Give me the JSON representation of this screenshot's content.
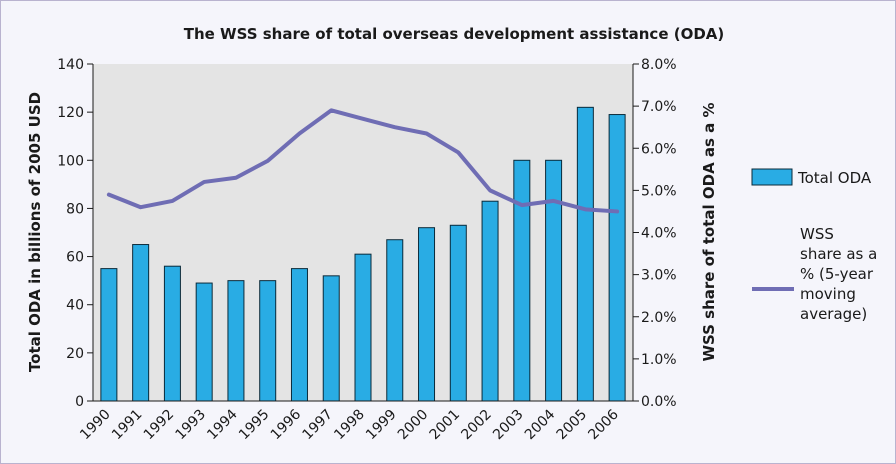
{
  "chart_data": {
    "type": "bar",
    "title": "The WSS share of total overseas development assistance (ODA)",
    "categories": [
      "1990",
      "1991",
      "1992",
      "1993",
      "1994",
      "1995",
      "1996",
      "1997",
      "1998",
      "1999",
      "2000",
      "2001",
      "2002",
      "2003",
      "2004",
      "2005",
      "2006"
    ],
    "series": [
      {
        "name": "Total ODA",
        "type": "bar",
        "axis": "left",
        "values": [
          55,
          65,
          56,
          49,
          50,
          50,
          55,
          52,
          61,
          67,
          72,
          73,
          83,
          100,
          100,
          122,
          119
        ]
      },
      {
        "name": "WSS share as a % (5-year moving average)",
        "type": "line",
        "axis": "right",
        "values": [
          4.9,
          4.6,
          4.75,
          5.2,
          5.3,
          5.7,
          6.35,
          6.9,
          6.7,
          6.5,
          6.35,
          5.9,
          5.0,
          4.65,
          4.75,
          4.55,
          4.5
        ]
      }
    ],
    "ylabel": "Total ODA in billions of 2005 USD",
    "y2label": "WSS share of total ODA as a %",
    "ylim": [
      0,
      140
    ],
    "y2lim": [
      0,
      8
    ],
    "yticks": [
      "0",
      "20",
      "40",
      "60",
      "80",
      "100",
      "120",
      "140"
    ],
    "y2ticks": [
      "0.0%",
      "1.0%",
      "2.0%",
      "3.0%",
      "4.0%",
      "5.0%",
      "6.0%",
      "7.0%",
      "8.0%"
    ],
    "legend": {
      "position": "right",
      "bar_label": "Total ODA",
      "line_label_lines": [
        "WSS",
        "share as a",
        "% (5-year",
        "moving",
        "average)"
      ]
    },
    "colors": {
      "bar": "#29ace4",
      "bar_stroke": "#0a2a3a",
      "line": "#6f6db4",
      "plot_bg": "#e4e4e4",
      "axis": "#1a1a1a"
    },
    "grid": false
  }
}
